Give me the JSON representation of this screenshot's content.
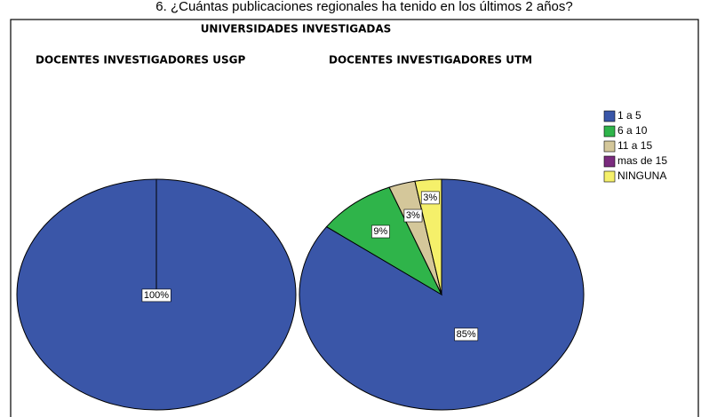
{
  "question": "6. ¿Cuántas publicaciones regionales ha tenido en los últimos 2 años?",
  "title": "UNIVERSIDADES INVESTIGADAS",
  "legend": {
    "categories": [
      "1 a 5",
      "6 a 10",
      "11 a 15",
      "mas de 15",
      "NINGUNA"
    ],
    "colors": [
      "#3a56a8",
      "#2fb44a",
      "#d4c79a",
      "#7a2b7e",
      "#f5f06a"
    ]
  },
  "chart_data": [
    {
      "type": "pie",
      "title": "DOCENTES INVESTIGADORES USGP",
      "values": [
        100,
        0,
        0,
        0,
        0
      ],
      "value_labels": [
        "100%",
        null,
        null,
        null,
        null
      ]
    },
    {
      "type": "pie",
      "title": "DOCENTES INVESTIGADORES UTM",
      "values": [
        85,
        9,
        3,
        0,
        3
      ],
      "value_labels": [
        "85%",
        "9%",
        "3%",
        null,
        "3%"
      ]
    }
  ]
}
